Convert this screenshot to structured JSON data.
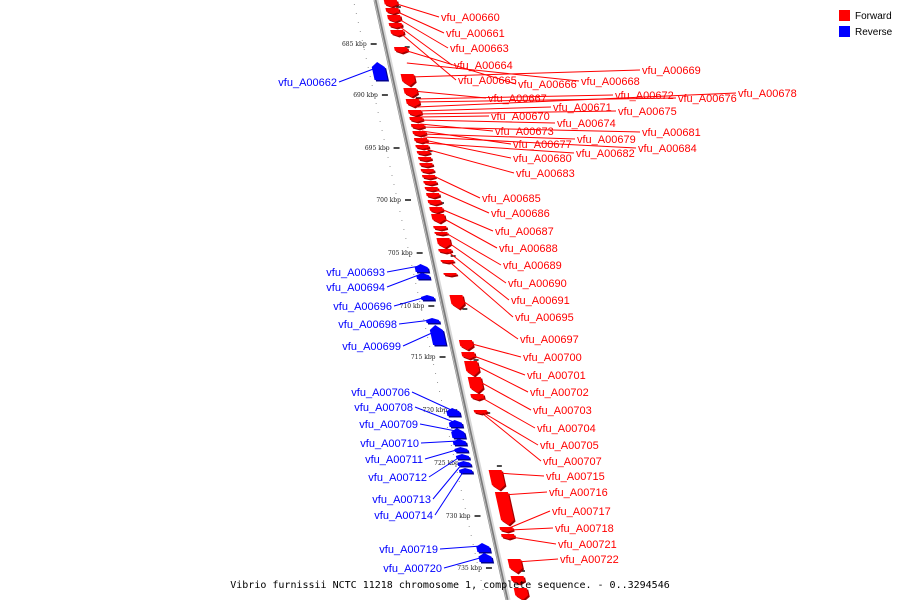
{
  "caption": "Vibrio furnissii NCTC 11218 chromosome 1, complete sequence. - 0..3294546",
  "legend": [
    {
      "label": "Forward",
      "color": "#ff0000"
    },
    {
      "label": "Reverse",
      "color": "#0000ff"
    }
  ],
  "ticks": [
    "685 kbp",
    "690 kbp",
    "695 kbp",
    "700 kbp",
    "705 kbp",
    "710 kbp",
    "715 kbp",
    "720 kbp",
    "725 kbp",
    "730 kbp",
    "735 kbp"
  ],
  "forward_labels": [
    "vfu_A00660",
    "vfu_A00661",
    "vfu_A00663",
    "vfu_A00664",
    "vfu_A00665",
    "vfu_A00666",
    "vfu_A00668",
    "vfu_A00669",
    "vfu_A00667",
    "vfu_A00672",
    "vfu_A00676",
    "vfu_A00678",
    "vfu_A00671",
    "vfu_A00675",
    "vfu_A00670",
    "vfu_A00674",
    "vfu_A00673",
    "vfu_A00681",
    "vfu_A00677",
    "vfu_A00679",
    "vfu_A00684",
    "vfu_A00680",
    "vfu_A00682",
    "vfu_A00683",
    "vfu_A00685",
    "vfu_A00686",
    "vfu_A00687",
    "vfu_A00688",
    "vfu_A00689",
    "vfu_A00690",
    "vfu_A00691",
    "vfu_A00695",
    "vfu_A00697",
    "vfu_A00700",
    "vfu_A00701",
    "vfu_A00702",
    "vfu_A00703",
    "vfu_A00704",
    "vfu_A00705",
    "vfu_A00707",
    "vfu_A00715",
    "vfu_A00716",
    "vfu_A00717",
    "vfu_A00718",
    "vfu_A00721",
    "vfu_A00722"
  ],
  "reverse_labels": [
    "vfu_A00662",
    "vfu_A00693",
    "vfu_A00694",
    "vfu_A00696",
    "vfu_A00698",
    "vfu_A00699",
    "vfu_A00706",
    "vfu_A00708",
    "vfu_A00709",
    "vfu_A00710",
    "vfu_A00711",
    "vfu_A00712",
    "vfu_A00713",
    "vfu_A00714",
    "vfu_A00719",
    "vfu_A00720"
  ]
}
